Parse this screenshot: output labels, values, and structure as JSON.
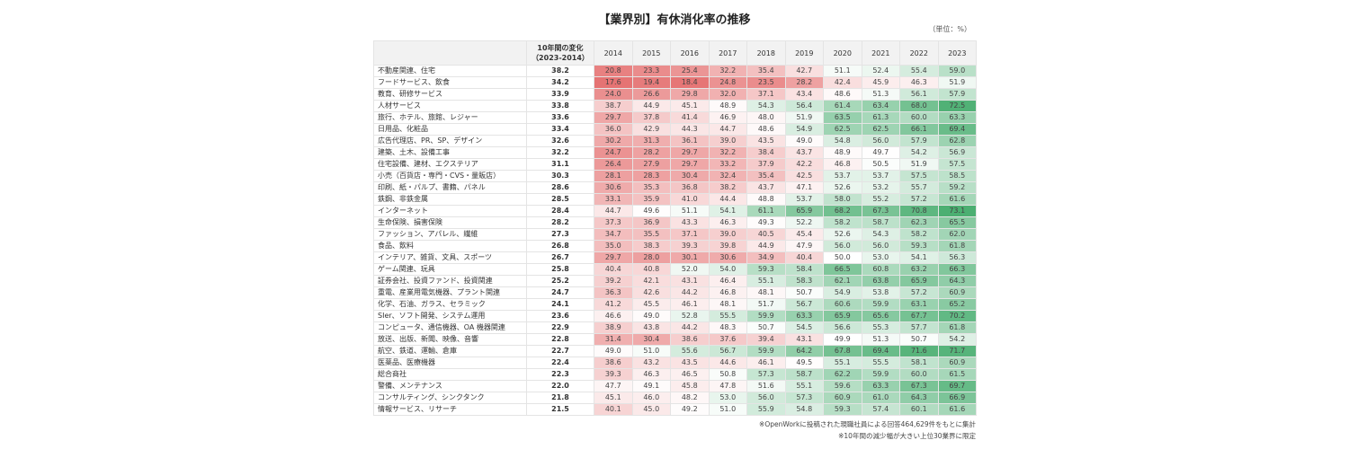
{
  "chart_data": {
    "type": "heatmap",
    "title": "【業界別】有休消化率の推移",
    "unit": "（単位：%）",
    "header": {
      "name": "",
      "change": "10年間の変化",
      "change_sub": "（2023-2014）"
    },
    "years": [
      "2014",
      "2015",
      "2016",
      "2017",
      "2018",
      "2019",
      "2020",
      "2021",
      "2022",
      "2023"
    ],
    "color_scale": {
      "low": "#e57373",
      "mid": "#ffffff",
      "high": "#4caf72",
      "mid_value": 50
    },
    "rows": [
      {
        "name": "不動産関連、住宅",
        "change": "38.2",
        "values": [
          20.8,
          23.3,
          25.4,
          32.2,
          35.4,
          42.7,
          51.1,
          52.4,
          55.4,
          59.0
        ]
      },
      {
        "name": "フードサービス、飲食",
        "change": "34.2",
        "values": [
          17.6,
          19.4,
          18.4,
          24.8,
          23.5,
          28.2,
          42.4,
          45.9,
          46.3,
          51.9
        ]
      },
      {
        "name": "教育、研修サービス",
        "change": "33.9",
        "values": [
          24.0,
          26.6,
          29.8,
          32.0,
          37.1,
          43.4,
          48.6,
          51.3,
          56.1,
          57.9
        ]
      },
      {
        "name": "人材サービス",
        "change": "33.8",
        "values": [
          38.7,
          44.9,
          45.1,
          48.9,
          54.3,
          56.4,
          61.4,
          63.4,
          68.0,
          72.5
        ]
      },
      {
        "name": "旅行、ホテル、旅館、レジャー",
        "change": "33.6",
        "values": [
          29.7,
          37.8,
          41.4,
          46.9,
          48.0,
          51.9,
          63.5,
          61.3,
          60.0,
          63.3
        ]
      },
      {
        "name": "日用品、化粧品",
        "change": "33.4",
        "values": [
          36.0,
          42.9,
          44.3,
          44.7,
          48.6,
          54.9,
          62.5,
          62.5,
          66.1,
          69.4
        ]
      },
      {
        "name": "広告代理店、PR、SP、デザイン",
        "change": "32.6",
        "values": [
          30.2,
          31.3,
          36.1,
          39.0,
          43.5,
          49.0,
          54.8,
          56.0,
          57.9,
          62.8
        ]
      },
      {
        "name": "建築、土木、設備工事",
        "change": "32.2",
        "values": [
          24.7,
          28.2,
          29.7,
          32.2,
          38.4,
          43.7,
          48.9,
          49.7,
          54.2,
          56.9
        ]
      },
      {
        "name": "住宅設備、建材、エクステリア",
        "change": "31.1",
        "values": [
          26.4,
          27.9,
          29.7,
          33.2,
          37.9,
          42.2,
          46.8,
          50.5,
          51.9,
          57.5
        ]
      },
      {
        "name": "小売（百貨店・専門・CVS・量販店）",
        "change": "30.3",
        "values": [
          28.1,
          28.3,
          30.4,
          32.4,
          35.4,
          42.5,
          53.7,
          53.7,
          57.5,
          58.5
        ]
      },
      {
        "name": "印刷、紙・パルプ、書籍、パネル",
        "change": "28.6",
        "values": [
          30.6,
          35.3,
          36.8,
          38.2,
          43.7,
          47.1,
          52.6,
          53.2,
          55.7,
          59.2
        ]
      },
      {
        "name": "鉄鋼、非鉄金属",
        "change": "28.5",
        "values": [
          33.1,
          35.9,
          41.0,
          44.4,
          48.8,
          53.7,
          58.0,
          55.2,
          57.2,
          61.6
        ]
      },
      {
        "name": "インターネット",
        "change": "28.4",
        "values": [
          44.7,
          49.6,
          51.1,
          54.1,
          61.1,
          65.9,
          68.2,
          67.3,
          70.8,
          73.1
        ]
      },
      {
        "name": "生命保険、損害保険",
        "change": "28.2",
        "values": [
          37.3,
          36.9,
          43.3,
          46.3,
          49.3,
          52.2,
          58.2,
          58.7,
          62.3,
          65.5
        ]
      },
      {
        "name": "ファッション、アパレル、繊維",
        "change": "27.3",
        "values": [
          34.7,
          35.5,
          37.1,
          39.0,
          40.5,
          45.4,
          52.6,
          54.3,
          58.2,
          62.0
        ]
      },
      {
        "name": "食品、飲料",
        "change": "26.8",
        "values": [
          35.0,
          38.3,
          39.3,
          39.8,
          44.9,
          47.9,
          56.0,
          56.0,
          59.3,
          61.8
        ]
      },
      {
        "name": "インテリア、雑貨、文具、スポーツ",
        "change": "26.7",
        "values": [
          29.7,
          28.0,
          30.1,
          30.6,
          34.9,
          40.4,
          50.0,
          53.0,
          54.1,
          56.3
        ]
      },
      {
        "name": "ゲーム関連、玩具",
        "change": "25.8",
        "values": [
          40.4,
          40.8,
          52.0,
          54.0,
          59.3,
          58.4,
          66.5,
          60.8,
          63.2,
          66.3
        ]
      },
      {
        "name": "証券会社、投資ファンド、投資関連",
        "change": "25.2",
        "values": [
          39.2,
          42.1,
          43.1,
          46.4,
          55.1,
          58.3,
          62.1,
          63.8,
          65.9,
          64.3
        ]
      },
      {
        "name": "重電、産業用電気機器、プラント関連",
        "change": "24.7",
        "values": [
          36.3,
          42.6,
          44.2,
          46.8,
          48.1,
          50.7,
          54.9,
          53.8,
          57.2,
          60.9
        ]
      },
      {
        "name": "化学、石油、ガラス、セラミック",
        "change": "24.1",
        "values": [
          41.2,
          45.5,
          46.1,
          48.1,
          51.7,
          56.7,
          60.6,
          59.9,
          63.1,
          65.2
        ]
      },
      {
        "name": "SIer、ソフト開発、システム運用",
        "change": "23.6",
        "values": [
          46.6,
          49.0,
          52.8,
          55.5,
          59.9,
          63.3,
          65.9,
          65.6,
          67.7,
          70.2
        ]
      },
      {
        "name": "コンピュータ、通信機器、OA 機器関連",
        "change": "22.9",
        "values": [
          38.9,
          43.8,
          44.2,
          48.3,
          50.7,
          54.5,
          56.6,
          55.3,
          57.7,
          61.8
        ]
      },
      {
        "name": "放送、出版、新聞、映像、音響",
        "change": "22.8",
        "values": [
          31.4,
          30.4,
          38.6,
          37.6,
          39.4,
          43.1,
          49.9,
          51.3,
          50.7,
          54.2
        ]
      },
      {
        "name": "航空、鉄道、運輸、倉庫",
        "change": "22.7",
        "values": [
          49.0,
          51.0,
          55.6,
          56.7,
          59.9,
          64.2,
          67.8,
          69.4,
          71.6,
          71.7
        ]
      },
      {
        "name": "医薬品、医療機器",
        "change": "22.4",
        "values": [
          38.6,
          43.2,
          43.5,
          44.6,
          46.1,
          49.5,
          55.1,
          55.5,
          58.1,
          60.9
        ]
      },
      {
        "name": "総合商社",
        "change": "22.3",
        "values": [
          39.3,
          46.3,
          46.5,
          50.8,
          57.3,
          58.7,
          62.2,
          59.9,
          60.0,
          61.5
        ]
      },
      {
        "name": "警備、メンテナンス",
        "change": "22.0",
        "values": [
          47.7,
          49.1,
          45.8,
          47.8,
          51.6,
          55.1,
          59.6,
          63.3,
          67.3,
          69.7
        ]
      },
      {
        "name": "コンサルティング、シンクタンク",
        "change": "21.8",
        "values": [
          45.1,
          46.0,
          48.2,
          53.0,
          56.0,
          57.3,
          60.9,
          61.0,
          64.3,
          66.9
        ]
      },
      {
        "name": "情報サービス、リサーチ",
        "change": "21.5",
        "values": [
          40.1,
          45.0,
          49.2,
          51.0,
          55.9,
          54.8,
          59.3,
          57.4,
          60.1,
          61.6
        ]
      }
    ],
    "notes": [
      "※OpenWorkに投稿された現職社員による回答464,629件をもとに集計",
      "※10年間の減少幅が大きい上位30業界に限定"
    ]
  }
}
